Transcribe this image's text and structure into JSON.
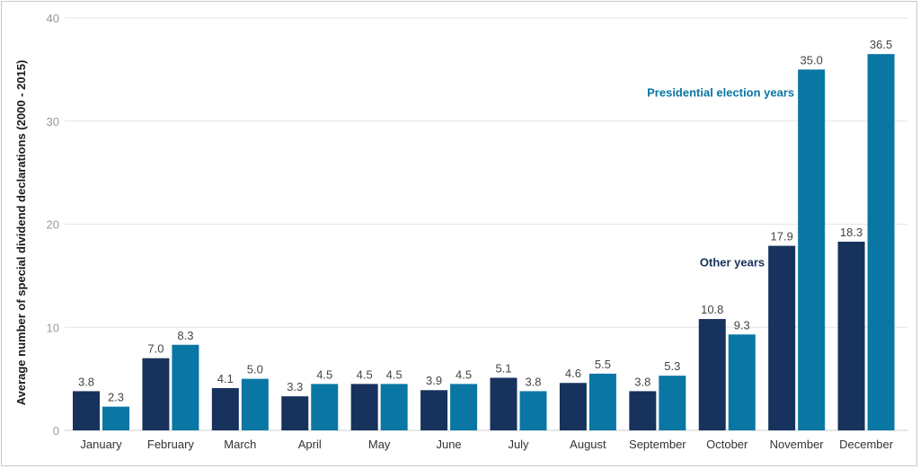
{
  "chart_data": {
    "type": "bar",
    "title": "",
    "xlabel": "",
    "ylabel": "Average number of special dividend declarations (2000 - 2015)",
    "ylim": [
      0,
      40
    ],
    "yticks": [
      0,
      10,
      20,
      30,
      40
    ],
    "grid": true,
    "categories": [
      "January",
      "February",
      "March",
      "April",
      "May",
      "June",
      "July",
      "August",
      "September",
      "October",
      "November",
      "December"
    ],
    "series": [
      {
        "name": "Other years",
        "color": "#17325c",
        "values": [
          3.8,
          7.0,
          4.1,
          3.3,
          4.5,
          3.9,
          5.1,
          4.6,
          3.8,
          10.8,
          17.9,
          18.3
        ]
      },
      {
        "name": "Presidential election years",
        "color": "#0a76a3",
        "values": [
          2.3,
          8.3,
          5.0,
          4.5,
          4.5,
          4.5,
          3.8,
          5.5,
          5.3,
          9.3,
          35.0,
          36.5
        ]
      }
    ],
    "annotations": [
      {
        "text": "Other years",
        "series": 0,
        "category": "November"
      },
      {
        "text": "Presidential election years",
        "series": 1,
        "category": "November"
      }
    ]
  }
}
